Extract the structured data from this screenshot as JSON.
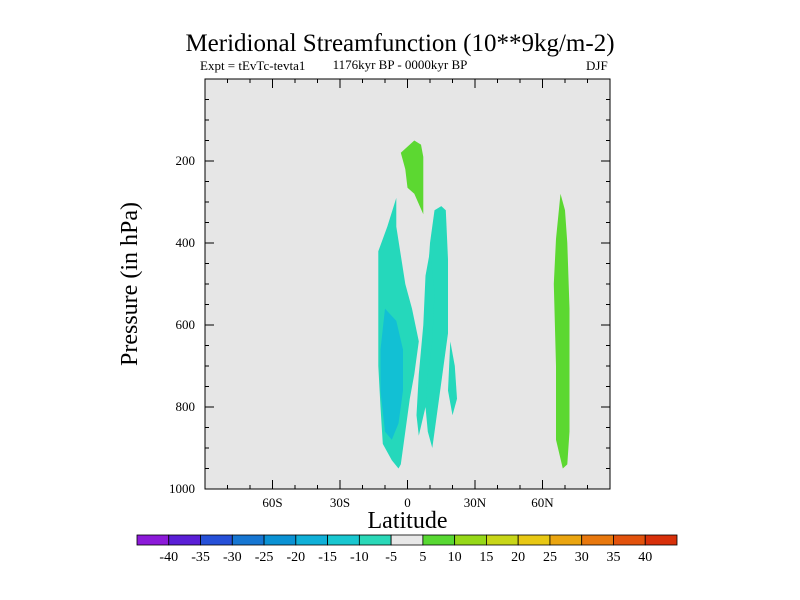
{
  "chart_data": {
    "type": "contour",
    "title": "Meridional Streamfunction (10**9kg/m-2)",
    "left_subtitle": "Expt = tEvTc-tevta1",
    "center_subtitle": "1176kyr BP - 0000kyr BP",
    "right_subtitle": "DJF",
    "xlabel": "Latitude",
    "ylabel": "Pressure (in hPa)",
    "xlim": [
      -90,
      90
    ],
    "ylim": [
      1000,
      0
    ],
    "x_ticks": [
      {
        "value": -60,
        "label": "60S"
      },
      {
        "value": -30,
        "label": "30S"
      },
      {
        "value": 0,
        "label": "0"
      },
      {
        "value": 30,
        "label": "30N"
      },
      {
        "value": 60,
        "label": "60N"
      }
    ],
    "y_ticks": [
      {
        "value": 200,
        "label": "200"
      },
      {
        "value": 400,
        "label": "400"
      },
      {
        "value": 600,
        "label": "600"
      },
      {
        "value": 800,
        "label": "800"
      },
      {
        "value": 1000,
        "label": "1000"
      }
    ],
    "colorbar": {
      "labels": [
        "-40",
        "-35",
        "-30",
        "-25",
        "-20",
        "-15",
        "-10",
        "-5",
        "5",
        "10",
        "15",
        "20",
        "25",
        "30",
        "35",
        "40"
      ],
      "colors": [
        "#8c1ad9",
        "#5a1ed6",
        "#2650d8",
        "#1676d2",
        "#0a92d4",
        "#10b0d8",
        "#19c7d0",
        "#2ad8b8",
        "#e8e8e8",
        "#58d832",
        "#96d818",
        "#c8d618",
        "#e8c814",
        "#eaa510",
        "#e8780e",
        "#e2520c",
        "#d8300a"
      ]
    },
    "regions": [
      {
        "level": "10",
        "color": "#5cd831",
        "points": [
          [
            -3,
            180
          ],
          [
            3,
            150
          ],
          [
            6,
            160
          ],
          [
            7,
            190
          ],
          [
            7,
            250
          ],
          [
            7,
            330
          ],
          [
            3,
            280
          ],
          [
            0,
            265
          ],
          [
            -1,
            220
          ],
          [
            -3,
            180
          ]
        ]
      },
      {
        "level": "-10",
        "color": "#25d8bb",
        "points": [
          [
            -13,
            420
          ],
          [
            -9,
            360
          ],
          [
            -5,
            290
          ],
          [
            -5,
            360
          ],
          [
            -3,
            430
          ],
          [
            -1,
            500
          ],
          [
            2,
            560
          ],
          [
            5,
            640
          ],
          [
            3,
            720
          ],
          [
            1,
            780
          ],
          [
            -1,
            860
          ],
          [
            -3,
            940
          ],
          [
            -4,
            950
          ],
          [
            -7,
            930
          ],
          [
            -11,
            890
          ],
          [
            -12,
            800
          ],
          [
            -13,
            700
          ],
          [
            -13,
            600
          ],
          [
            -13,
            500
          ],
          [
            -13,
            420
          ]
        ]
      },
      {
        "level": "-10",
        "color": "#25d8bb",
        "points": [
          [
            12,
            320
          ],
          [
            15,
            310
          ],
          [
            17,
            320
          ],
          [
            18,
            440
          ],
          [
            18,
            620
          ],
          [
            15,
            740
          ],
          [
            13,
            820
          ],
          [
            11,
            900
          ],
          [
            9,
            860
          ],
          [
            8,
            800
          ],
          [
            7,
            720
          ],
          [
            8,
            600
          ],
          [
            9,
            480
          ],
          [
            10,
            400
          ],
          [
            12,
            320
          ]
        ]
      },
      {
        "level": "-10",
        "color": "#25d8bb",
        "points": [
          [
            10,
            420
          ],
          [
            12,
            520
          ],
          [
            11,
            640
          ],
          [
            9,
            720
          ],
          [
            8,
            800
          ],
          [
            5,
            870
          ],
          [
            4,
            820
          ],
          [
            5,
            720
          ],
          [
            7,
            600
          ],
          [
            8,
            480
          ],
          [
            10,
            420
          ]
        ]
      },
      {
        "level": "-10",
        "color": "#25d8bb",
        "points": [
          [
            19,
            640
          ],
          [
            21,
            700
          ],
          [
            22,
            780
          ],
          [
            20,
            820
          ],
          [
            18,
            760
          ],
          [
            19,
            640
          ]
        ]
      },
      {
        "level": "-15",
        "color": "#12c0d4",
        "points": [
          [
            -10,
            560
          ],
          [
            -5,
            590
          ],
          [
            -2,
            660
          ],
          [
            -2,
            760
          ],
          [
            -4,
            840
          ],
          [
            -7,
            880
          ],
          [
            -10,
            860
          ],
          [
            -12,
            760
          ],
          [
            -12,
            660
          ],
          [
            -10,
            560
          ]
        ]
      },
      {
        "level": "10",
        "color": "#5cd831",
        "points": [
          [
            66,
            390
          ],
          [
            68,
            280
          ],
          [
            70,
            320
          ],
          [
            71,
            400
          ],
          [
            72,
            560
          ],
          [
            72,
            720
          ],
          [
            72,
            860
          ],
          [
            71,
            940
          ],
          [
            69,
            950
          ],
          [
            66,
            880
          ],
          [
            66,
            700
          ],
          [
            65,
            500
          ],
          [
            66,
            390
          ]
        ]
      }
    ]
  }
}
